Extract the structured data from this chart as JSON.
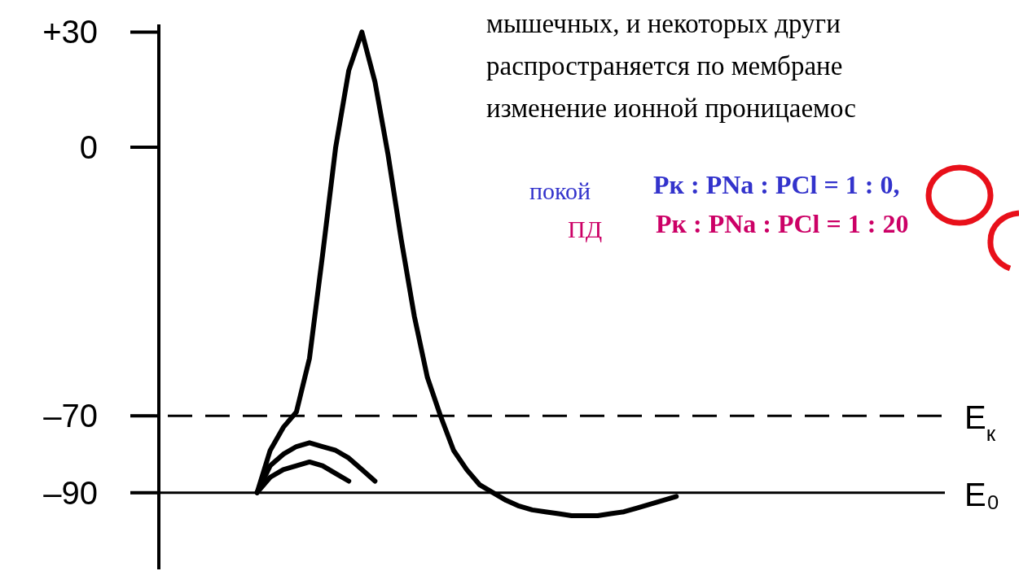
{
  "chart_data": {
    "type": "line",
    "categories": [
      null,
      null,
      null,
      null,
      null,
      null,
      null,
      null,
      null,
      null,
      null,
      null,
      null,
      null,
      null,
      null,
      null,
      null,
      null,
      null,
      null,
      null,
      null,
      null,
      null,
      null,
      null,
      null,
      null,
      null,
      null,
      null,
      null,
      null,
      null,
      null,
      null,
      null,
      null,
      null,
      null,
      null,
      null,
      null,
      null,
      null,
      null,
      null,
      null,
      null,
      null,
      null,
      null,
      null,
      null,
      null,
      null,
      null,
      null,
      null
    ],
    "ylim": [
      -110,
      32
    ],
    "yticks": [
      {
        "value": 30,
        "label": "+30"
      },
      0,
      {
        "value": -70,
        "label": "–70"
      },
      {
        "value": -90,
        "label": "–90"
      }
    ],
    "tick_labels": "y",
    "marker": "none",
    "line_style": "solid",
    "color": "#000000",
    "series": [
      {
        "values": [
          null,
          null,
          null,
          null,
          null,
          null,
          null,
          -90,
          -79,
          -73,
          -69,
          -55,
          -28,
          0,
          20,
          30,
          17,
          -2,
          -24,
          -44,
          -60,
          -70,
          -79,
          -84,
          -88,
          -90,
          -92,
          -93.5,
          -94.5,
          -95,
          -95.5,
          -96,
          -96,
          -96,
          -95.5,
          -95,
          -94,
          -93,
          -92,
          -91,
          null,
          null,
          null,
          null,
          null,
          null,
          null,
          null,
          null,
          null,
          null,
          null,
          null,
          null,
          null,
          null,
          null,
          null,
          null,
          null
        ]
      },
      {
        "values": [
          null,
          null,
          null,
          null,
          null,
          null,
          null,
          -90,
          -83,
          -80,
          -78,
          -77,
          -78,
          -79,
          -81,
          -84,
          -87,
          null,
          null,
          null,
          null,
          null,
          null,
          null,
          null,
          null,
          null,
          null,
          null,
          null,
          null,
          null,
          null,
          null,
          null,
          null,
          null,
          null,
          null,
          null,
          null,
          null,
          null,
          null,
          null,
          null,
          null,
          null,
          null,
          null,
          null,
          null,
          null,
          null,
          null,
          null,
          null,
          null,
          null,
          null
        ]
      },
      {
        "values": [
          null,
          null,
          null,
          null,
          null,
          null,
          null,
          -90,
          -86,
          -84,
          -83,
          -82,
          -83,
          -85,
          -87,
          null,
          null,
          null,
          null,
          null,
          null,
          null,
          null,
          null,
          null,
          null,
          null,
          null,
          null,
          null,
          null,
          null,
          null,
          null,
          null,
          null,
          null,
          null,
          null,
          null,
          null,
          null,
          null,
          null,
          null,
          null,
          null,
          null,
          null,
          null,
          null,
          null,
          null,
          null,
          null,
          null,
          null,
          null,
          null,
          null
        ]
      }
    ],
    "ref_lines": [
      {
        "axis": "y",
        "value": -70,
        "label": "E$_{к}$",
        "line_style": "dashed"
      },
      {
        "axis": "y",
        "value": -90,
        "label": "E₀",
        "line_style": "solid"
      }
    ],
    "annotations": [
      "мышечных, и некоторых други",
      "распространяется по мембране",
      "изменение ионной проницаемос",
      "покой",
      "Pк : PNa : PCl = 1 : 0,",
      "ПД",
      "Pк : PNa : PCl = 1 : 20"
    ]
  }
}
